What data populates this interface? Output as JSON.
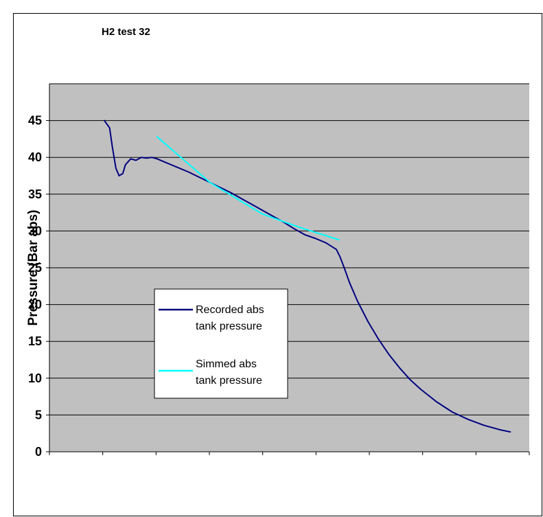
{
  "chart_data": {
    "type": "line",
    "title": "H2 test 32",
    "xlabel": "",
    "ylabel": "Pressure (Bar abs)",
    "ylim": [
      0,
      50
    ],
    "yticks": [
      0,
      5,
      10,
      15,
      20,
      25,
      30,
      35,
      40,
      45
    ],
    "x_ticks_count": 9,
    "grid": "horizontal",
    "legend_position": "left-center",
    "colors": {
      "plot_background": "#c0c0c0",
      "grid": "#000000"
    },
    "series": [
      {
        "name": "Recorded abs tank pressure",
        "color": "#000080",
        "x": [
          0,
          0.1,
          0.15,
          0.22,
          0.28,
          0.35,
          0.4,
          0.5,
          0.6,
          0.7,
          0.8,
          0.9,
          1.0,
          1.2,
          1.4,
          1.6,
          1.8,
          2.0,
          2.2,
          2.4,
          2.6,
          2.8,
          3.0,
          3.2,
          3.4,
          3.6,
          3.8,
          4.0,
          4.2,
          4.4,
          4.47,
          4.55,
          4.65,
          4.8,
          5.0,
          5.2,
          5.4,
          5.6,
          5.8,
          6.0,
          6.3,
          6.6,
          6.9,
          7.2,
          7.5,
          7.7
        ],
        "y": [
          45.0,
          44.0,
          41.5,
          38.5,
          37.5,
          37.8,
          39.0,
          39.8,
          39.6,
          40.0,
          39.9,
          40.0,
          39.8,
          39.2,
          38.6,
          38.0,
          37.3,
          36.6,
          35.9,
          35.2,
          34.4,
          33.6,
          32.8,
          32.0,
          31.2,
          30.3,
          29.5,
          29.0,
          28.4,
          27.5,
          26.5,
          25.0,
          23.0,
          20.5,
          17.7,
          15.3,
          13.2,
          11.4,
          9.8,
          8.5,
          6.8,
          5.4,
          4.4,
          3.6,
          3.0,
          2.7
        ]
      },
      {
        "name": "Simmed abs tank pressure",
        "color": "#00ffff",
        "x": [
          1.0,
          2.0,
          3.0,
          3.7,
          4.45
        ],
        "y": [
          42.8,
          36.6,
          32.3,
          30.5,
          28.8
        ]
      }
    ]
  }
}
